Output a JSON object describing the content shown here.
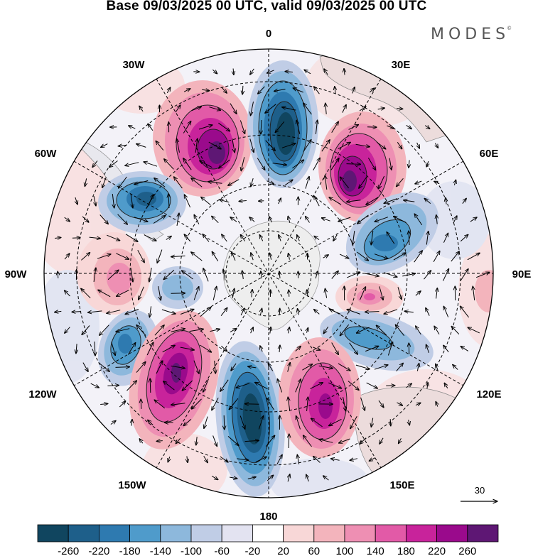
{
  "title": "Base 09/03/2025 00 UTC, valid 09/03/2025 00 UTC",
  "brand": {
    "name": "MODES",
    "mark": "©"
  },
  "longitude_labels": {
    "lon_0": "0",
    "lon_30e": "30E",
    "lon_60e": "60E",
    "lon_90e": "90E",
    "lon_120e": "120E",
    "lon_150e": "150E",
    "lon_180": "180",
    "lon_150w": "150W",
    "lon_120w": "120W",
    "lon_90w": "90W",
    "lon_60w": "60W",
    "lon_30w": "30W"
  },
  "vector_reference": {
    "label": "30"
  },
  "colorbar": {
    "labels": [
      "-260",
      "-220",
      "-180",
      "-140",
      "-100",
      "-60",
      "-20",
      "20",
      "60",
      "100",
      "140",
      "180",
      "220",
      "260"
    ],
    "colors": [
      "#10455f",
      "#1e5f8a",
      "#2e7ab0",
      "#4f9bcb",
      "#8db8dc",
      "#c0cde6",
      "#e3e3f1",
      "#ffffff",
      "#f8d7d7",
      "#f3b4bc",
      "#ee8fb3",
      "#e25aa7",
      "#c8239b",
      "#9a0a8c",
      "#5e1774"
    ]
  },
  "colors": {
    "land": "#eeeeee",
    "negative_strong": "#10455f",
    "positive_strong": "#5e1774"
  }
}
